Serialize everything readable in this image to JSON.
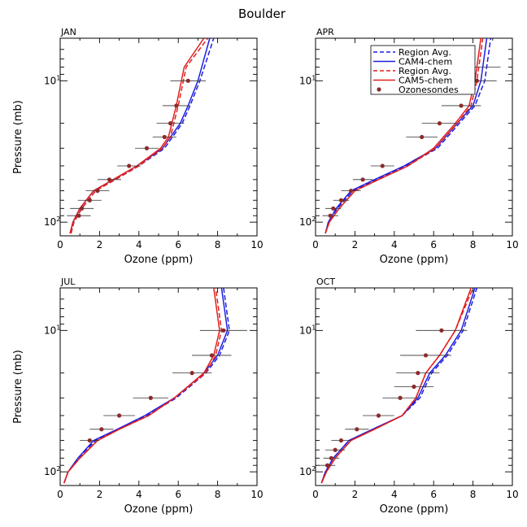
{
  "chart_data": {
    "type": "line",
    "title": "Boulder",
    "xlabel": "Ozone (ppm)",
    "ylabel": "Pressure (mb)",
    "xlim": [
      0,
      10
    ],
    "ylim_pressure": [
      125,
      5
    ],
    "y_scale": "log",
    "x_ticks": [
      "0",
      "2",
      "4",
      "6",
      "8",
      "10"
    ],
    "x_tick_values": [
      0,
      2,
      4,
      6,
      8,
      10
    ],
    "y_tick_labels": [
      {
        "base": "10",
        "exp": "1",
        "value": 10
      },
      {
        "base": "10",
        "exp": "2",
        "value": 100
      }
    ],
    "legend": {
      "placement": "top-right",
      "entries": [
        {
          "label": "Region Avg.",
          "series": "cam4_region",
          "color": "#1f1fe0",
          "style": "dashed"
        },
        {
          "label": "CAM4-chem",
          "series": "cam4",
          "color": "#1f1fe0",
          "style": "solid"
        },
        {
          "label": "Region Avg.",
          "series": "cam5_region",
          "color": "#e0201f",
          "style": "dashed"
        },
        {
          "label": "CAM5-chem",
          "series": "cam5",
          "color": "#e0201f",
          "style": "solid"
        },
        {
          "label": "Ozonesondes",
          "series": "obs",
          "color": "#8b2a2a",
          "style": "marker"
        }
      ]
    },
    "colors": {
      "blue": "#1f1fe0",
      "red": "#e0201f",
      "obs": "#8b2a2a",
      "errbar": "#333333"
    },
    "panels": [
      {
        "name": "JAN",
        "show_legend": false,
        "series": [
          {
            "name": "cam4_region",
            "x": [
              0.55,
              0.7,
              1.1,
              1.8,
              2.8,
              4.0,
              5.3,
              6.2,
              6.6,
              7.1,
              7.8
            ],
            "p": [
              120,
              100,
              80,
              60,
              50,
              40,
              30,
              20,
              15,
              10,
              5
            ]
          },
          {
            "name": "cam4",
            "x": [
              0.5,
              0.65,
              1.0,
              1.7,
              2.7,
              3.9,
              5.2,
              6.1,
              6.5,
              7.0,
              7.6
            ],
            "p": [
              120,
              100,
              80,
              60,
              50,
              40,
              30,
              20,
              15,
              10,
              5
            ]
          },
          {
            "name": "cam5_region",
            "x": [
              0.55,
              0.7,
              1.1,
              1.8,
              2.8,
              4.0,
              5.2,
              5.6,
              6.0,
              6.4,
              7.5
            ],
            "p": [
              120,
              100,
              80,
              60,
              50,
              40,
              30,
              25,
              15,
              8,
              5
            ]
          },
          {
            "name": "cam5",
            "x": [
              0.5,
              0.65,
              1.0,
              1.7,
              2.7,
              3.9,
              5.1,
              5.5,
              5.9,
              6.3,
              7.3
            ],
            "p": [
              120,
              100,
              80,
              60,
              50,
              40,
              30,
              25,
              15,
              8,
              5
            ]
          }
        ],
        "obs": [
          {
            "x": 6.5,
            "p": 10,
            "xerr": 0.9
          },
          {
            "x": 5.9,
            "p": 15,
            "xerr": 0.7
          },
          {
            "x": 5.6,
            "p": 20,
            "xerr": 0.7
          },
          {
            "x": 5.3,
            "p": 25,
            "xerr": 0.6
          },
          {
            "x": 4.4,
            "p": 30,
            "xerr": 0.6
          },
          {
            "x": 3.5,
            "p": 40,
            "xerr": 0.6
          },
          {
            "x": 2.5,
            "p": 50,
            "xerr": 0.6
          },
          {
            "x": 1.9,
            "p": 60,
            "xerr": 0.6
          },
          {
            "x": 1.5,
            "p": 70,
            "xerr": 0.6
          },
          {
            "x": 1.1,
            "p": 80,
            "xerr": 0.6
          },
          {
            "x": 0.95,
            "p": 90,
            "xerr": 0.6
          }
        ]
      },
      {
        "name": "APR",
        "show_legend": true,
        "series": [
          {
            "name": "cam4_region",
            "x": [
              0.5,
              0.65,
              1.1,
              1.9,
              3.1,
              4.6,
              6.2,
              7.3,
              8.1,
              8.6,
              8.9
            ],
            "p": [
              120,
              100,
              80,
              60,
              50,
              40,
              30,
              20,
              15,
              10,
              5
            ]
          },
          {
            "name": "cam4",
            "x": [
              0.5,
              0.65,
              1.05,
              1.8,
              3.0,
              4.5,
              6.1,
              7.2,
              8.0,
              8.4,
              8.7
            ],
            "p": [
              120,
              100,
              80,
              60,
              50,
              40,
              30,
              20,
              15,
              10,
              5
            ]
          },
          {
            "name": "cam5_region",
            "x": [
              0.5,
              0.7,
              1.2,
              2.0,
              3.2,
              4.7,
              6.1,
              7.2,
              7.9,
              8.2,
              8.5
            ],
            "p": [
              120,
              100,
              80,
              60,
              50,
              40,
              30,
              20,
              15,
              10,
              5
            ]
          },
          {
            "name": "cam5",
            "x": [
              0.5,
              0.7,
              1.2,
              2.0,
              3.2,
              4.7,
              6.0,
              7.1,
              7.8,
              8.1,
              8.4
            ],
            "p": [
              120,
              100,
              80,
              60,
              50,
              40,
              30,
              20,
              15,
              10,
              5
            ]
          }
        ],
        "obs": [
          {
            "x": 8.0,
            "p": 8,
            "xerr": 1.4
          },
          {
            "x": 8.2,
            "p": 10,
            "xerr": 1.0
          },
          {
            "x": 7.4,
            "p": 15,
            "xerr": 1.0
          },
          {
            "x": 6.3,
            "p": 20,
            "xerr": 0.9
          },
          {
            "x": 5.4,
            "p": 25,
            "xerr": 0.8
          },
          {
            "x": 3.4,
            "p": 40,
            "xerr": 0.6
          },
          {
            "x": 2.4,
            "p": 50,
            "xerr": 0.5
          },
          {
            "x": 1.8,
            "p": 60,
            "xerr": 0.5
          },
          {
            "x": 1.3,
            "p": 70,
            "xerr": 0.4
          },
          {
            "x": 0.9,
            "p": 80,
            "xerr": 0.4
          },
          {
            "x": 0.75,
            "p": 90,
            "xerr": 0.4
          }
        ]
      },
      {
        "name": "JUL",
        "show_legend": false,
        "series": [
          {
            "name": "cam4_region",
            "x": [
              0.2,
              0.4,
              0.9,
              1.8,
              3.0,
              4.4,
              5.9,
              7.4,
              8.1,
              8.6,
              8.3
            ],
            "p": [
              120,
              100,
              80,
              60,
              50,
              40,
              30,
              20,
              15,
              10,
              5
            ]
          },
          {
            "name": "cam4",
            "x": [
              0.2,
              0.4,
              0.9,
              1.7,
              2.9,
              4.3,
              5.8,
              7.3,
              8.0,
              8.5,
              8.2
            ],
            "p": [
              120,
              100,
              80,
              60,
              50,
              40,
              30,
              20,
              15,
              10,
              5
            ]
          },
          {
            "name": "cam5_region",
            "x": [
              0.2,
              0.4,
              1.0,
              1.9,
              3.0,
              4.5,
              5.8,
              7.4,
              7.9,
              8.2,
              7.9
            ],
            "p": [
              120,
              100,
              80,
              60,
              50,
              40,
              30,
              20,
              15,
              10,
              5
            ]
          },
          {
            "name": "cam5",
            "x": [
              0.2,
              0.4,
              1.0,
              1.9,
              3.0,
              4.5,
              5.8,
              7.3,
              7.8,
              8.1,
              7.8
            ],
            "p": [
              120,
              100,
              80,
              60,
              50,
              40,
              30,
              20,
              15,
              10,
              5
            ]
          }
        ],
        "obs": [
          {
            "x": 8.3,
            "p": 10,
            "xerr": 1.2
          },
          {
            "x": 7.7,
            "p": 15,
            "xerr": 1.0
          },
          {
            "x": 6.7,
            "p": 20,
            "xerr": 1.0
          },
          {
            "x": 4.6,
            "p": 30,
            "xerr": 0.9
          },
          {
            "x": 3.0,
            "p": 40,
            "xerr": 0.8
          },
          {
            "x": 2.1,
            "p": 50,
            "xerr": 0.6
          },
          {
            "x": 1.5,
            "p": 60,
            "xerr": 0.5
          }
        ]
      },
      {
        "name": "OCT",
        "show_legend": false,
        "series": [
          {
            "name": "cam4_region",
            "x": [
              0.3,
              0.5,
              0.9,
              1.7,
              2.9,
              4.4,
              5.3,
              5.9,
              6.7,
              7.5,
              8.2
            ],
            "p": [
              120,
              100,
              80,
              60,
              50,
              40,
              30,
              20,
              15,
              10,
              5
            ]
          },
          {
            "name": "cam4",
            "x": [
              0.3,
              0.5,
              0.9,
              1.7,
              2.9,
              4.4,
              5.2,
              5.8,
              6.6,
              7.4,
              8.1
            ],
            "p": [
              120,
              100,
              80,
              60,
              50,
              40,
              30,
              20,
              15,
              10,
              5
            ]
          },
          {
            "name": "cam5_region",
            "x": [
              0.3,
              0.55,
              1.0,
              1.8,
              3.0,
              4.4,
              5.1,
              5.6,
              6.3,
              7.1,
              8.0
            ],
            "p": [
              120,
              100,
              80,
              60,
              50,
              40,
              30,
              20,
              15,
              10,
              5
            ]
          },
          {
            "name": "cam5",
            "x": [
              0.3,
              0.55,
              1.0,
              1.8,
              3.0,
              4.4,
              5.1,
              5.6,
              6.3,
              7.1,
              7.9
            ],
            "p": [
              120,
              100,
              80,
              60,
              50,
              40,
              30,
              20,
              15,
              10,
              5
            ]
          }
        ],
        "obs": [
          {
            "x": 6.4,
            "p": 10,
            "xerr": 1.3
          },
          {
            "x": 5.6,
            "p": 15,
            "xerr": 1.3
          },
          {
            "x": 5.2,
            "p": 20,
            "xerr": 1.1
          },
          {
            "x": 5.0,
            "p": 25,
            "xerr": 1.0
          },
          {
            "x": 4.3,
            "p": 30,
            "xerr": 0.9
          },
          {
            "x": 3.2,
            "p": 40,
            "xerr": 0.8
          },
          {
            "x": 2.1,
            "p": 50,
            "xerr": 0.6
          },
          {
            "x": 1.3,
            "p": 60,
            "xerr": 0.5
          },
          {
            "x": 1.0,
            "p": 70,
            "xerr": 0.5
          },
          {
            "x": 0.8,
            "p": 80,
            "xerr": 0.4
          },
          {
            "x": 0.6,
            "p": 90,
            "xerr": 0.4
          }
        ]
      }
    ]
  }
}
